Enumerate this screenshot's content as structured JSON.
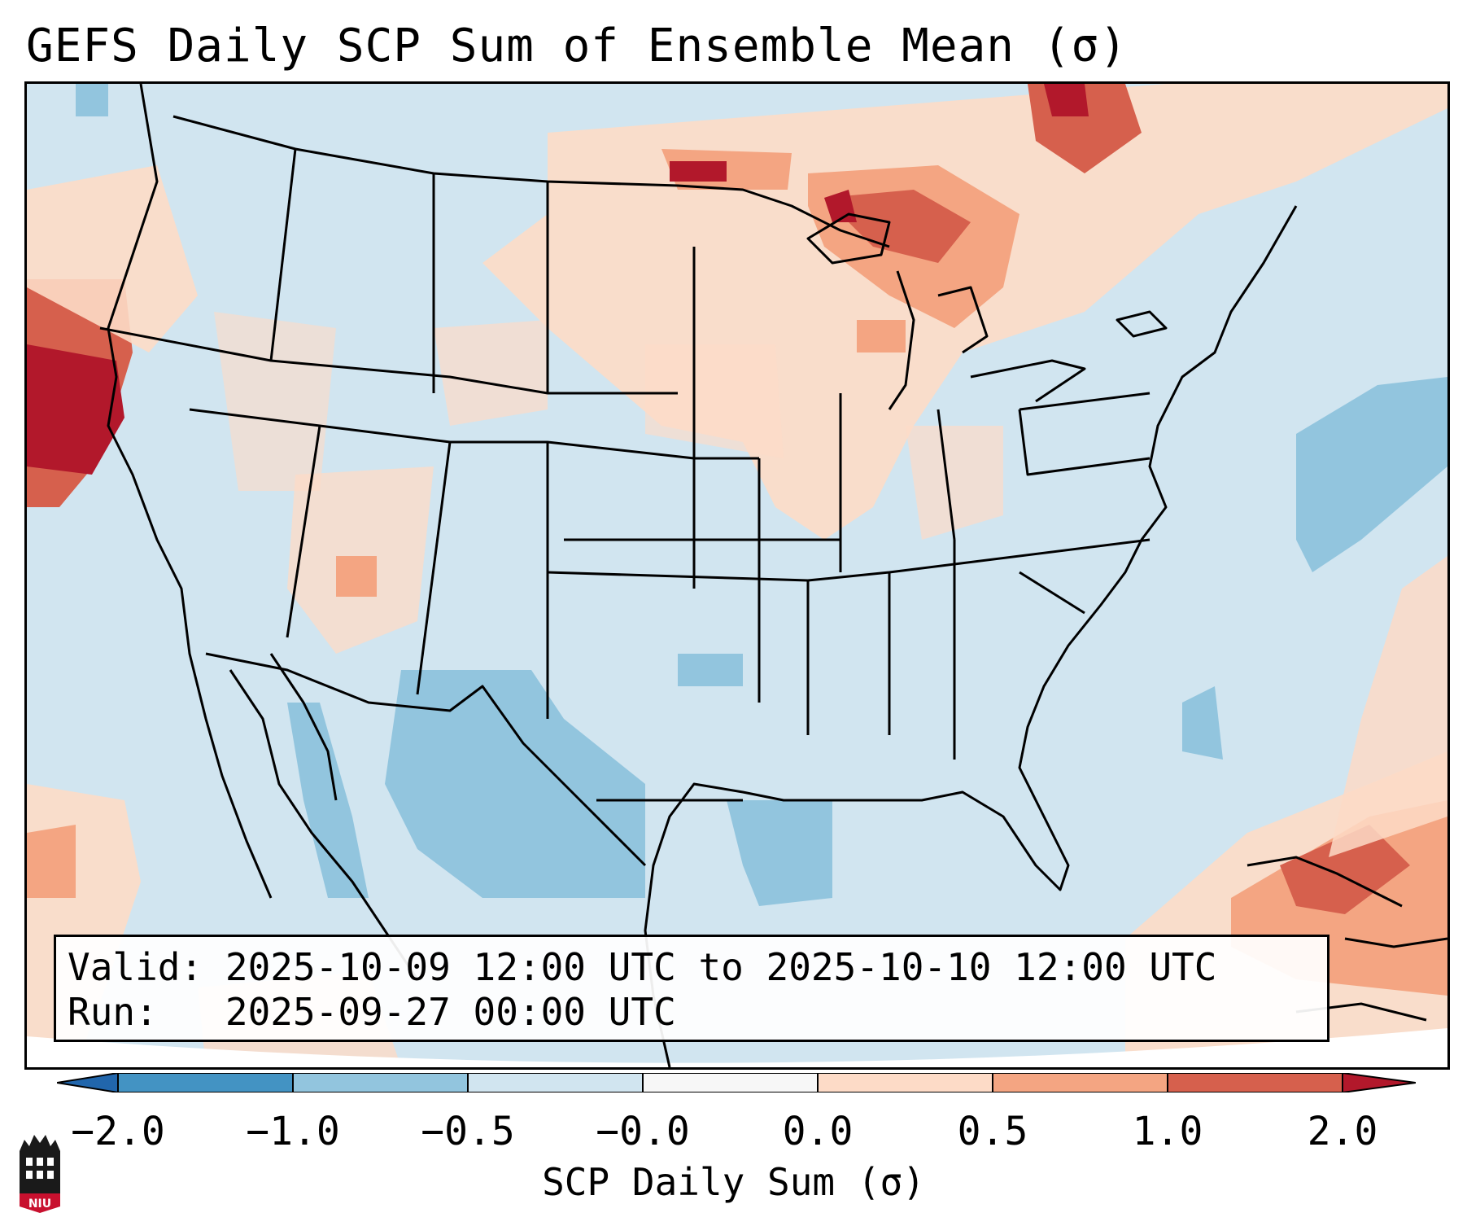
{
  "title": "GEFS Daily SCP Sum of Ensemble Mean (σ)",
  "info": {
    "valid_label": "Valid:",
    "valid_value": "2025-10-09 12:00 UTC to 2025-10-10 12:00 UTC",
    "run_label": "Run:",
    "run_value": "2025-09-27 00:00 UTC"
  },
  "colorbar": {
    "label": "SCP Daily Sum (σ)",
    "ticks": [
      "−2.0",
      "−1.0",
      "−0.5",
      "−0.0",
      "0.0",
      "0.5",
      "1.0",
      "2.0"
    ],
    "bins": [
      {
        "range": "below -2.0",
        "color": "#2166ac"
      },
      {
        "range": "-2.0 to -1.0",
        "color": "#4393c3"
      },
      {
        "range": "-1.0 to -0.5",
        "color": "#92c5de"
      },
      {
        "range": "-0.5 to -0.0",
        "color": "#d1e5f0"
      },
      {
        "range": "-0.0 to 0.0",
        "color": "#f7f7f7"
      },
      {
        "range": "0.0 to 0.5",
        "color": "#fddbc7"
      },
      {
        "range": "0.5 to 1.0",
        "color": "#f4a582"
      },
      {
        "range": "1.0 to 2.0",
        "color": "#d6604d"
      },
      {
        "range": "above 2.0",
        "color": "#b2182b"
      }
    ]
  },
  "logo": {
    "text": "NIU"
  }
}
